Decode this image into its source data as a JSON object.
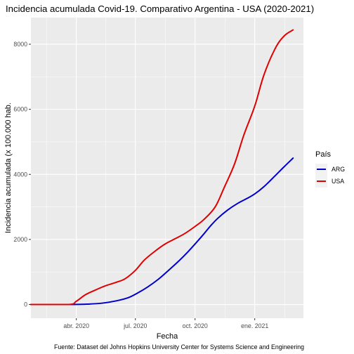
{
  "chart_data": {
    "type": "line",
    "title": "Incidencia acumulada Covid-19. Comparativo Argentina - USA (2020-2021)",
    "xlabel": "Fecha",
    "ylabel": "Incidencia acumulada (x 100.000 hab.",
    "caption": "Fuente: Dataset del Johns Hopkins University Center for Systems Science and Engineering",
    "x_ticks": [
      {
        "date": "2020-04-01",
        "label": "abr. 2020"
      },
      {
        "date": "2020-07-01",
        "label": "jul. 2020"
      },
      {
        "date": "2020-10-01",
        "label": "oct. 2020"
      },
      {
        "date": "2021-01-01",
        "label": "ene. 2021"
      }
    ],
    "xlim": [
      "2020-01-22",
      "2021-03-17"
    ],
    "y_ticks": [
      0,
      2000,
      4000,
      6000,
      8000
    ],
    "ylim": [
      -420,
      8820
    ],
    "grid": true,
    "background": "#ebebeb",
    "legend": {
      "title": "País",
      "placement": "right",
      "items": [
        {
          "label": "ARG",
          "color": "#0000cd"
        },
        {
          "label": "USA",
          "color": "#e00000"
        }
      ]
    },
    "series": [
      {
        "name": "ARG",
        "color": "#0000cd",
        "x": [
          "2020-01-22",
          "2020-03-20",
          "2020-04-15",
          "2020-05-10",
          "2020-06-01",
          "2020-06-20",
          "2020-07-05",
          "2020-07-20",
          "2020-08-05",
          "2020-08-20",
          "2020-09-05",
          "2020-09-20",
          "2020-10-05",
          "2020-10-15",
          "2020-10-25",
          "2020-11-05",
          "2020-11-20",
          "2020-12-05",
          "2020-12-20",
          "2021-01-01",
          "2021-01-15",
          "2021-02-01",
          "2021-02-15",
          "2021-03-01"
        ],
        "y": [
          0,
          0,
          10,
          40,
          110,
          210,
          360,
          540,
          770,
          1030,
          1320,
          1620,
          1950,
          2180,
          2420,
          2650,
          2900,
          3100,
          3260,
          3400,
          3620,
          3950,
          4230,
          4500
        ]
      },
      {
        "name": "USA",
        "color": "#e00000",
        "x": [
          "2020-01-22",
          "2020-03-20",
          "2020-04-01",
          "2020-04-15",
          "2020-05-01",
          "2020-05-15",
          "2020-06-01",
          "2020-06-15",
          "2020-07-01",
          "2020-07-15",
          "2020-08-01",
          "2020-08-15",
          "2020-09-01",
          "2020-09-15",
          "2020-10-01",
          "2020-10-15",
          "2020-11-01",
          "2020-11-15",
          "2020-12-01",
          "2020-12-15",
          "2021-01-01",
          "2021-01-15",
          "2021-02-01",
          "2021-02-15",
          "2021-03-01"
        ],
        "y": [
          0,
          0,
          100,
          300,
          450,
          570,
          680,
          790,
          1050,
          1370,
          1650,
          1850,
          2030,
          2180,
          2400,
          2620,
          3000,
          3600,
          4330,
          5200,
          6100,
          7050,
          7850,
          8250,
          8440
        ]
      }
    ]
  }
}
